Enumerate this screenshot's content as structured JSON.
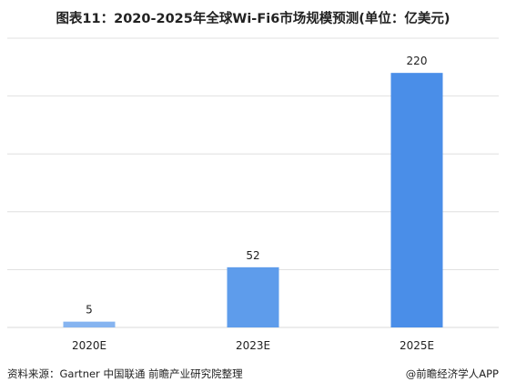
{
  "title": "图表11：2020-2025年全球Wi-Fi6市场规模预测(单位：亿美元)",
  "footer": {
    "source": "资料来源：Gartner 中国联通 前瞻产业研究院整理",
    "credit": "@前瞻经济学人APP"
  },
  "colors": {
    "bar_small": "#86B4F0",
    "bar_mid": "#5E9CEB",
    "bar_large": "#4A8EE8",
    "grid": "#d9d9d9"
  },
  "chart_data": {
    "type": "bar",
    "title": "图表11：2020-2025年全球Wi-Fi6市场规模预测(单位：亿美元)",
    "categories": [
      "2020E",
      "2023E",
      "2025E"
    ],
    "values": [
      5,
      52,
      220
    ],
    "data_labels": [
      "5",
      "52",
      "220"
    ],
    "xlabel": "",
    "ylabel": "",
    "ylim": [
      0,
      250
    ],
    "grid": true,
    "legend": "none"
  }
}
